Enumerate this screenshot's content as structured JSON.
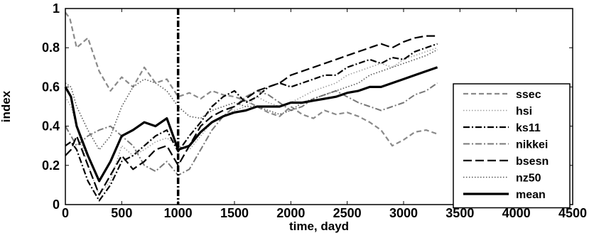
{
  "chart_data": {
    "type": "line",
    "title": "",
    "xlabel": "time, dayd",
    "ylabel": "index",
    "xlim": [
      0,
      4500
    ],
    "ylim": [
      0,
      1
    ],
    "xticks": [
      0,
      500,
      1000,
      1500,
      2000,
      2500,
      3000,
      3500,
      4000,
      4500
    ],
    "yticks": [
      0,
      0.2,
      0.4,
      0.6,
      0.8,
      1
    ],
    "xtick_labels": [
      "0",
      "500",
      "1000",
      "1500",
      "2000",
      "2500",
      "3000",
      "3500",
      "4000",
      "4500"
    ],
    "ytick_labels": [
      "0",
      "0.2",
      "0.4",
      "0.6",
      "0.8",
      "1"
    ],
    "grid": false,
    "legend_position": "right",
    "annotations": [
      {
        "type": "vertical-line",
        "x": 1000,
        "style": "dash-dot"
      }
    ],
    "series": [
      {
        "name": "ssec",
        "color": "#8a8a8a",
        "dash": "dashed",
        "x": [
          0,
          40,
          100,
          200,
          300,
          400,
          500,
          600,
          700,
          800,
          900,
          1000,
          1100,
          1200,
          1300,
          1400,
          1500,
          1600,
          1700,
          1800,
          1900,
          2000,
          2100,
          2200,
          2300,
          2400,
          2500,
          2600,
          2700,
          2800,
          2900,
          3000,
          3100,
          3200,
          3300
        ],
        "y": [
          0.98,
          0.95,
          0.8,
          0.85,
          0.68,
          0.58,
          0.65,
          0.6,
          0.7,
          0.62,
          0.64,
          0.55,
          0.57,
          0.54,
          0.58,
          0.56,
          0.55,
          0.53,
          0.5,
          0.47,
          0.45,
          0.5,
          0.46,
          0.44,
          0.48,
          0.46,
          0.47,
          0.45,
          0.42,
          0.38,
          0.3,
          0.33,
          0.37,
          0.38,
          0.36
        ]
      },
      {
        "name": "hsi",
        "color": "#a0a0a0",
        "dash": "dotted",
        "x": [
          0,
          50,
          100,
          200,
          300,
          400,
          500,
          600,
          700,
          800,
          900,
          1000,
          1100,
          1200,
          1300,
          1400,
          1500,
          1600,
          1700,
          1800,
          1900,
          2000,
          2100,
          2200,
          2300,
          2400,
          2500,
          2600,
          2700,
          2800,
          2900,
          3000,
          3100,
          3200,
          3300
        ],
        "y": [
          0.55,
          0.5,
          0.4,
          0.2,
          0.05,
          0.12,
          0.3,
          0.25,
          0.28,
          0.32,
          0.34,
          0.3,
          0.28,
          0.35,
          0.42,
          0.45,
          0.48,
          0.5,
          0.55,
          0.52,
          0.5,
          0.52,
          0.55,
          0.58,
          0.6,
          0.62,
          0.66,
          0.68,
          0.7,
          0.72,
          0.7,
          0.74,
          0.76,
          0.78,
          0.8
        ]
      },
      {
        "name": "ks11",
        "color": "#000000",
        "dash": "dash-dot",
        "x": [
          0,
          50,
          100,
          200,
          300,
          400,
          500,
          600,
          700,
          800,
          900,
          1000,
          1100,
          1200,
          1300,
          1400,
          1500,
          1600,
          1700,
          1800,
          1900,
          2000,
          2100,
          2200,
          2300,
          2400,
          2500,
          2600,
          2700,
          2800,
          2900,
          3000,
          3100,
          3200,
          3300
        ],
        "y": [
          0.3,
          0.32,
          0.28,
          0.12,
          0.02,
          0.1,
          0.22,
          0.25,
          0.3,
          0.35,
          0.38,
          0.27,
          0.35,
          0.42,
          0.5,
          0.55,
          0.58,
          0.52,
          0.55,
          0.6,
          0.62,
          0.6,
          0.62,
          0.64,
          0.66,
          0.66,
          0.7,
          0.72,
          0.74,
          0.72,
          0.75,
          0.74,
          0.78,
          0.8,
          0.82
        ]
      },
      {
        "name": "nikkei",
        "color": "#787878",
        "dash": "dash-dot",
        "x": [
          0,
          50,
          100,
          200,
          300,
          400,
          500,
          600,
          700,
          800,
          900,
          1000,
          1100,
          1200,
          1300,
          1400,
          1500,
          1600,
          1700,
          1800,
          1900,
          2000,
          2100,
          2200,
          2300,
          2400,
          2500,
          2600,
          2700,
          2800,
          2900,
          3000,
          3100,
          3200,
          3300
        ],
        "y": [
          0.4,
          0.35,
          0.3,
          0.35,
          0.38,
          0.4,
          0.35,
          0.3,
          0.2,
          0.17,
          0.22,
          0.15,
          0.18,
          0.28,
          0.38,
          0.45,
          0.5,
          0.55,
          0.58,
          0.56,
          0.52,
          0.48,
          0.5,
          0.54,
          0.56,
          0.58,
          0.55,
          0.52,
          0.5,
          0.48,
          0.5,
          0.52,
          0.56,
          0.58,
          0.62
        ]
      },
      {
        "name": "bsesn",
        "color": "#000000",
        "dash": "long-dashed",
        "x": [
          0,
          50,
          100,
          200,
          300,
          400,
          500,
          600,
          700,
          800,
          900,
          1000,
          1100,
          1200,
          1300,
          1400,
          1500,
          1600,
          1700,
          1800,
          1900,
          2000,
          2100,
          2200,
          2300,
          2400,
          2500,
          2600,
          2700,
          2800,
          2900,
          3000,
          3100,
          3200,
          3300
        ],
        "y": [
          0.25,
          0.28,
          0.35,
          0.2,
          0.05,
          0.15,
          0.25,
          0.18,
          0.22,
          0.28,
          0.3,
          0.2,
          0.3,
          0.4,
          0.45,
          0.48,
          0.5,
          0.54,
          0.58,
          0.6,
          0.62,
          0.66,
          0.68,
          0.7,
          0.72,
          0.74,
          0.76,
          0.78,
          0.8,
          0.82,
          0.8,
          0.83,
          0.85,
          0.86,
          0.86
        ]
      },
      {
        "name": "nz50",
        "color": "#555555",
        "dash": "dotted",
        "x": [
          0,
          50,
          100,
          200,
          300,
          400,
          500,
          600,
          700,
          800,
          900,
          1000,
          1100,
          1200,
          1300,
          1400,
          1500,
          1600,
          1700,
          1800,
          1900,
          2000,
          2100,
          2200,
          2300,
          2400,
          2500,
          2600,
          2700,
          2800,
          2900,
          3000,
          3100,
          3200,
          3300
        ],
        "y": [
          0.62,
          0.6,
          0.5,
          0.38,
          0.28,
          0.35,
          0.5,
          0.6,
          0.64,
          0.62,
          0.58,
          0.5,
          0.45,
          0.44,
          0.48,
          0.5,
          0.52,
          0.5,
          0.5,
          0.48,
          0.46,
          0.48,
          0.52,
          0.54,
          0.56,
          0.58,
          0.6,
          0.62,
          0.66,
          0.68,
          0.7,
          0.72,
          0.74,
          0.76,
          0.79
        ]
      },
      {
        "name": "mean",
        "color": "#000000",
        "dash": "solid",
        "x": [
          0,
          50,
          100,
          200,
          300,
          400,
          500,
          600,
          700,
          800,
          900,
          1000,
          1100,
          1200,
          1300,
          1400,
          1500,
          1600,
          1700,
          1800,
          1900,
          2000,
          2100,
          2200,
          2300,
          2400,
          2500,
          2600,
          2700,
          2800,
          2900,
          3000,
          3100,
          3200,
          3300
        ],
        "y": [
          0.6,
          0.55,
          0.4,
          0.25,
          0.12,
          0.22,
          0.35,
          0.38,
          0.42,
          0.4,
          0.44,
          0.28,
          0.3,
          0.37,
          0.42,
          0.45,
          0.47,
          0.48,
          0.5,
          0.5,
          0.5,
          0.52,
          0.52,
          0.53,
          0.54,
          0.55,
          0.57,
          0.58,
          0.6,
          0.6,
          0.62,
          0.64,
          0.66,
          0.68,
          0.7
        ]
      }
    ]
  }
}
